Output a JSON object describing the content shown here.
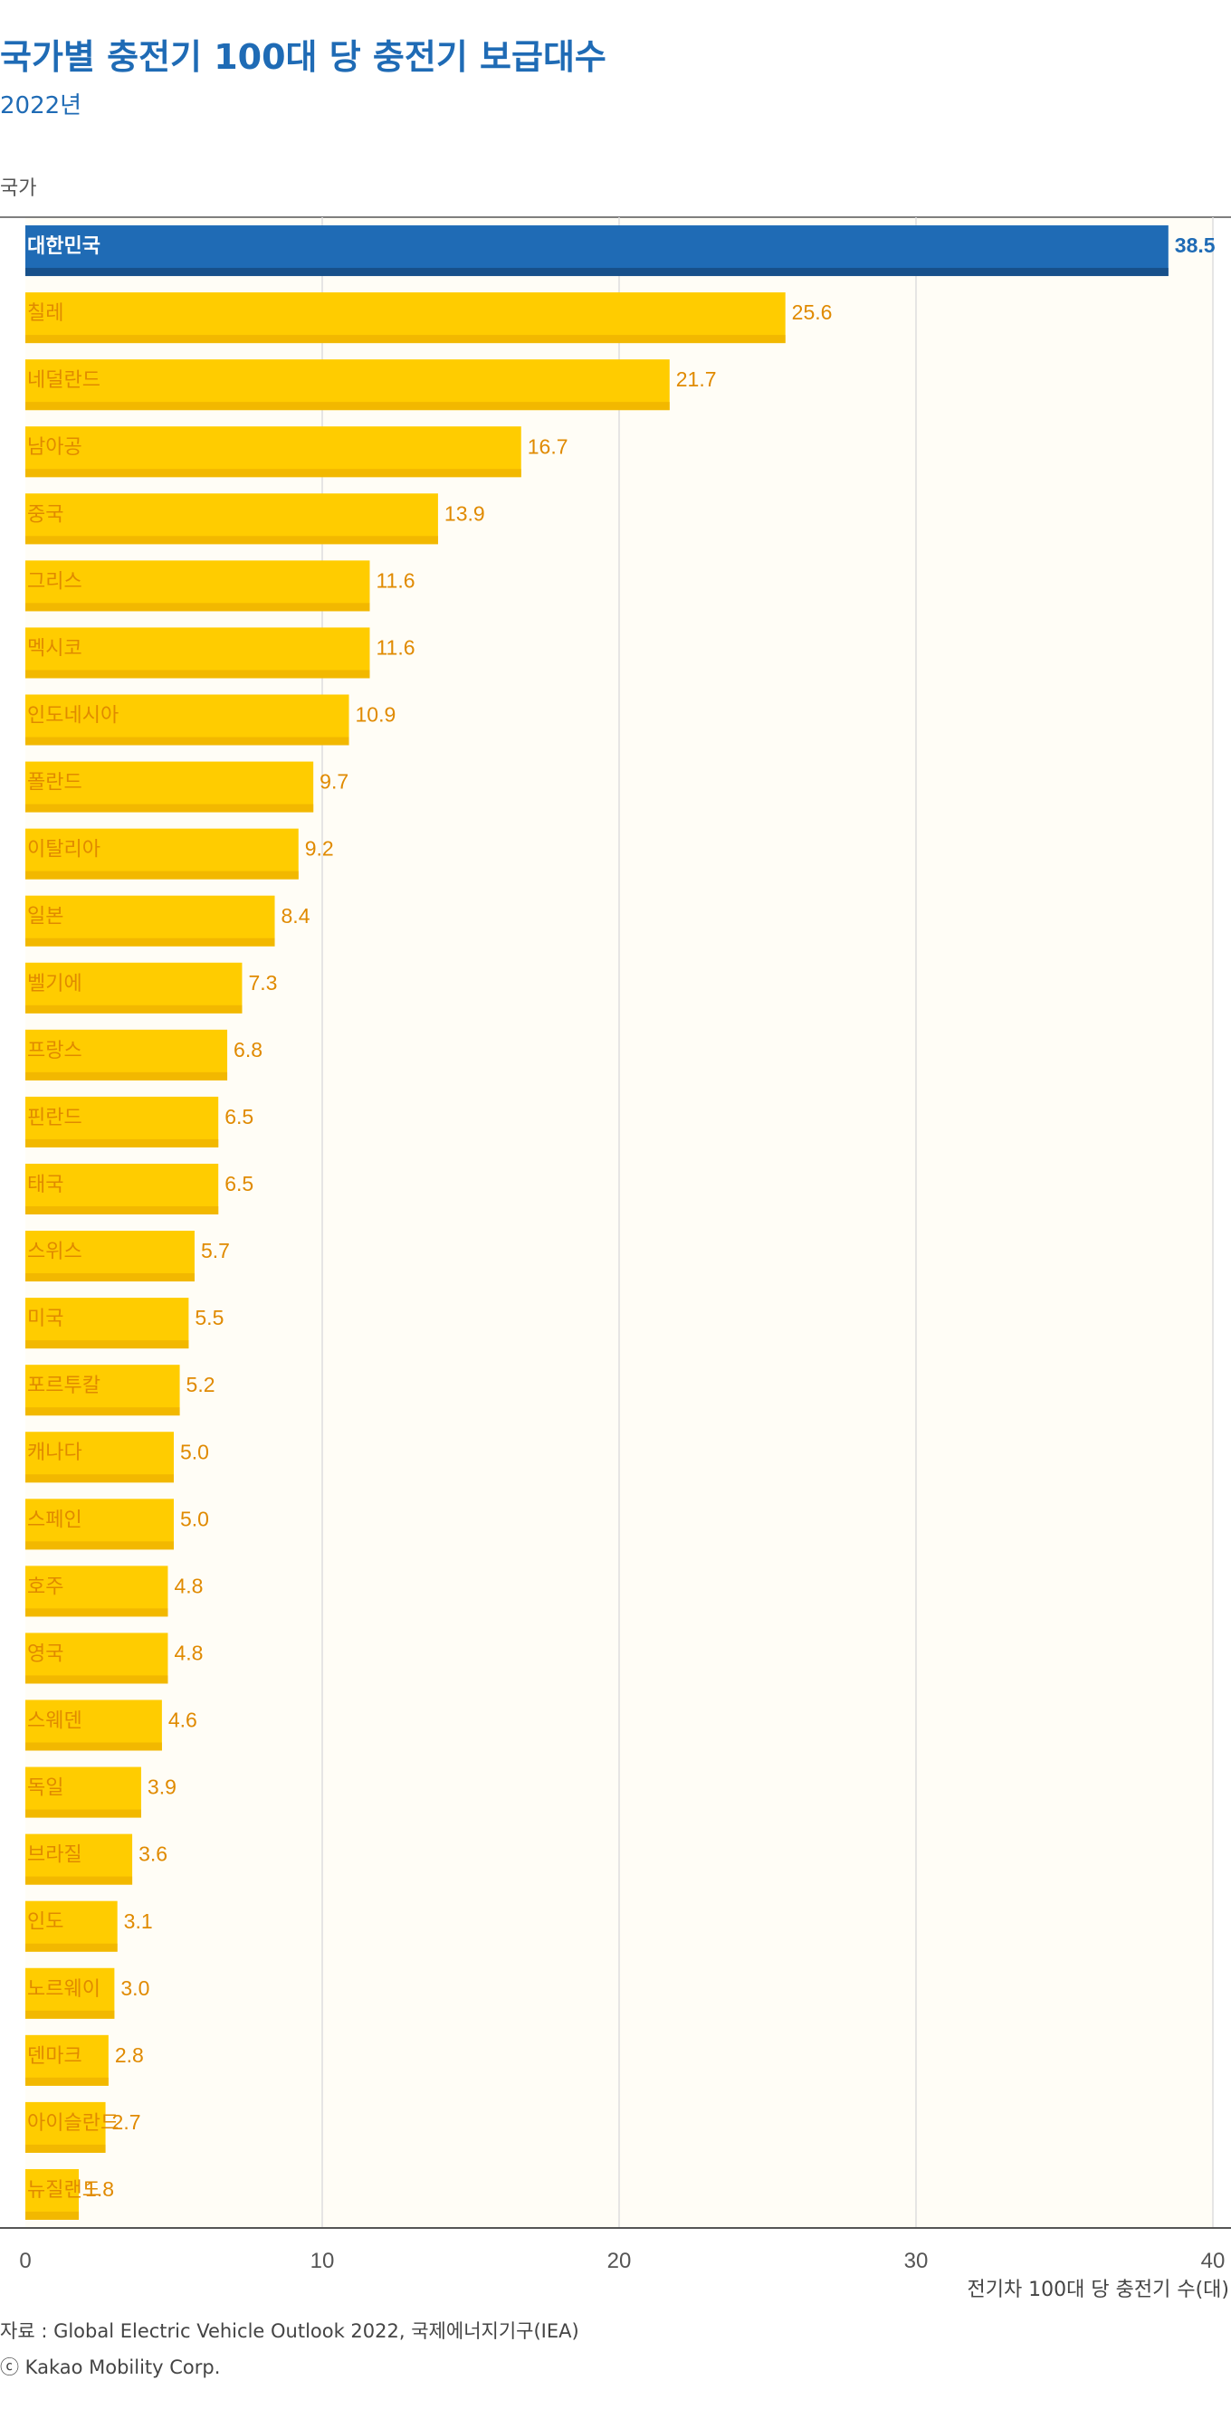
{
  "chart_data": {
    "type": "bar",
    "orientation": "horizontal",
    "title": "국가별 충전기 100대 당 충전기 보급대수",
    "subtitle": "2022년",
    "ylabel": "국가",
    "xlabel": "전기차 100대 당 충전기 수(대)",
    "xlim": [
      0,
      40
    ],
    "xticks": [
      0,
      10,
      20,
      30,
      40
    ],
    "grid": true,
    "categories": [
      "대한민국",
      "칠레",
      "네덜란드",
      "남아공",
      "중국",
      "그리스",
      "멕시코",
      "인도네시아",
      "폴란드",
      "이탈리아",
      "일본",
      "벨기에",
      "프랑스",
      "핀란드",
      "태국",
      "스위스",
      "미국",
      "포르투칼",
      "캐나다",
      "스페인",
      "호주",
      "영국",
      "스웨덴",
      "독일",
      "브라질",
      "인도",
      "노르웨이",
      "덴마크",
      "아이슬란드",
      "뉴질랜드"
    ],
    "values": [
      38.5,
      25.6,
      21.7,
      16.7,
      13.9,
      11.6,
      11.6,
      10.9,
      9.7,
      9.2,
      8.4,
      7.3,
      6.8,
      6.5,
      6.5,
      5.7,
      5.5,
      5.2,
      5.0,
      5.0,
      4.8,
      4.8,
      4.6,
      3.9,
      3.6,
      3.1,
      3.0,
      2.8,
      2.7,
      1.8
    ],
    "value_labels": [
      "38.5",
      "25.6",
      "21.7",
      "16.7",
      "13.9",
      "11.6",
      "11.6",
      "10.9",
      "9.7",
      "9.2",
      "8.4",
      "7.3",
      "6.8",
      "6.5",
      "6.5",
      "5.7",
      "5.5",
      "5.2",
      "5.0",
      "5.0",
      "4.8",
      "4.8",
      "4.6",
      "3.9",
      "3.6",
      "3.1",
      "3.0",
      "2.8",
      "2.7",
      "1.8"
    ],
    "highlight_category": "대한민국",
    "colors": {
      "highlight_bar": "#1f6bb5",
      "highlight_bar_shade": "#17508a",
      "highlight_value": "#1f6bb5",
      "bar": "#ffcc00",
      "bar_shade": "#f2b800",
      "label": "#e08a00",
      "plot_bg": "#fffdf6",
      "grid": "#dddddd",
      "axis": "#555555"
    }
  },
  "source": "자료 : Global Electric Vehicle Outlook 2022, 국제에너지기구(IEA)",
  "copyright": "ⓒ Kakao Mobility Corp."
}
